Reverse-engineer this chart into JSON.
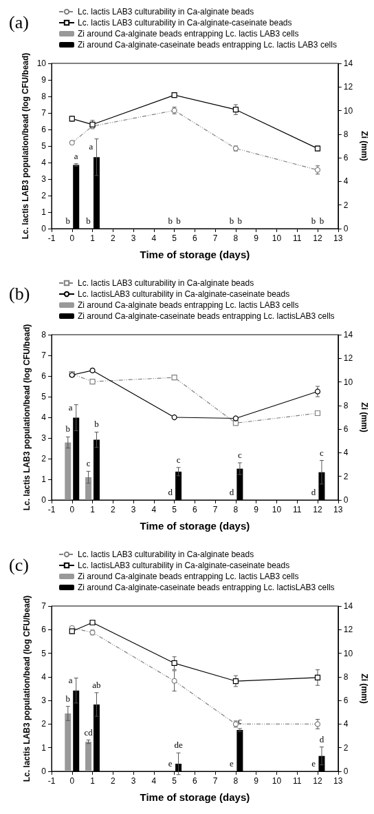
{
  "chart_data": [
    {
      "type": "line",
      "title": "(a)",
      "xlabel": "Time of storage (days)",
      "ylabel": "Lc. lactis LAB3 population/bead (log CFU/bead)",
      "y2label": "Zi (mm)",
      "legend": "top",
      "xlim": [
        -1,
        13
      ],
      "xticks": [
        -1,
        0,
        1,
        2,
        3,
        4,
        5,
        6,
        7,
        8,
        9,
        10,
        11,
        12,
        13
      ],
      "ylim": [
        0,
        10
      ],
      "yticks": [
        0,
        1,
        2,
        3,
        4,
        5,
        6,
        7,
        8,
        9,
        10
      ],
      "y2lim": [
        0,
        14
      ],
      "y2ticks": [
        0,
        2,
        4,
        6,
        8,
        10,
        12,
        14
      ],
      "series": [
        {
          "name": "Lc. lactis LAB3 culturability in Ca-alginate beads",
          "color": "#808080",
          "marker": "circle",
          "line_style": "dashed",
          "x": [
            0,
            1,
            5,
            8,
            12
          ],
          "values": [
            5.2,
            6.2,
            7.15,
            4.85,
            3.55
          ],
          "errors": [
            0.1,
            0.1,
            0.2,
            0.15,
            0.25
          ]
        },
        {
          "name": "Lc. lactis LAB3 culturability in Ca-alginate-caseinate beads",
          "color": "#000000",
          "marker": "square",
          "line_style": "solid",
          "x": [
            0,
            1,
            5,
            8,
            12
          ],
          "values": [
            6.65,
            6.3,
            8.08,
            7.2,
            4.85
          ],
          "errors": [
            0.15,
            0.25,
            0.05,
            0.3,
            0.15
          ]
        },
        {
          "name": "Zi around Ca-alginate beads entrapping Lc. lactis LAB3 cells",
          "type": "bar",
          "axis": "y2",
          "color": "#999999",
          "x": [
            -0.2,
            0.8,
            4.8,
            7.8,
            11.8
          ],
          "values": [
            0,
            0,
            0,
            0,
            0
          ],
          "value_labels": [
            "b",
            "b",
            "b",
            "b",
            "b"
          ]
        },
        {
          "name": "Zi around Ca-alginate-caseinate beads entrapping Lc. lactis LAB3 cells",
          "type": "bar",
          "axis": "y2",
          "color": "#000000",
          "x": [
            0.2,
            1.2,
            5.2,
            8.2,
            12.2
          ],
          "values": [
            5.4,
            6.05,
            0,
            0,
            0
          ],
          "errors": [
            0.1,
            1.55,
            null,
            null,
            null
          ],
          "value_labels": [
            "a",
            "a",
            "b",
            "b",
            "b"
          ]
        }
      ]
    },
    {
      "type": "line",
      "title": "(b)",
      "xlabel": "Time of storage (days)",
      "ylabel": "Lc. lactis LAB3 population/bead (log CFU/bead)",
      "y2label": "Zi (mm)",
      "legend": "top",
      "xlim": [
        -1,
        13
      ],
      "xticks": [
        -1,
        0,
        1,
        2,
        3,
        4,
        5,
        6,
        7,
        8,
        9,
        10,
        11,
        12,
        13
      ],
      "ylim": [
        0,
        8
      ],
      "yticks": [
        0,
        1,
        2,
        3,
        4,
        5,
        6,
        7,
        8
      ],
      "y2lim": [
        0,
        14
      ],
      "y2ticks": [
        0,
        2,
        4,
        6,
        8,
        10,
        12,
        14
      ],
      "series": [
        {
          "name": "Lc. lactis LAB3 culturability in Ca-alginate beads",
          "color": "#808080",
          "marker": "square",
          "line_style": "dashed",
          "x": [
            0,
            1,
            5,
            8,
            12
          ],
          "values": [
            6.1,
            5.73,
            5.93,
            3.72,
            4.2
          ],
          "errors": [
            0.1,
            0.03,
            0.02,
            0.05,
            0.07
          ]
        },
        {
          "name": "Lc. lactisLAB3 culturability in Ca-alginate-caseinate beads",
          "color": "#000000",
          "marker": "circle",
          "line_style": "solid",
          "x": [
            0,
            1,
            5,
            8,
            12
          ],
          "values": [
            6.05,
            6.27,
            4.0,
            3.95,
            5.25
          ],
          "errors": [
            0.1,
            0.02,
            0.02,
            0.02,
            0.25
          ]
        },
        {
          "name": "Zi around Ca-alginate beads entrapping Lc. lactis LAB3 cells",
          "type": "bar",
          "axis": "y2",
          "color": "#999999",
          "x": [
            -0.2,
            0.8,
            4.8,
            7.8,
            11.8
          ],
          "values": [
            4.87,
            1.93,
            0,
            0,
            0
          ],
          "errors": [
            0.47,
            0.5,
            null,
            null,
            null
          ],
          "value_labels": [
            "b",
            "c",
            "d",
            "d",
            "d"
          ]
        },
        {
          "name": "Zi around Ca-alginate-caseinate beads entrapping Lc. lactisLAB3 cells",
          "type": "bar",
          "axis": "y2",
          "color": "#000000",
          "x": [
            0.2,
            1.2,
            5.2,
            8.2,
            12.2
          ],
          "values": [
            6.97,
            5.1,
            2.4,
            2.65,
            2.35
          ],
          "errors": [
            1.1,
            0.65,
            0.35,
            0.5,
            1.0
          ],
          "value_labels": [
            "a",
            "b",
            "c",
            "c",
            "c"
          ]
        }
      ]
    },
    {
      "type": "line",
      "title": "(c)",
      "xlabel": "Time of storage (days)",
      "ylabel": "Lc. lactis LAB3 population/bead (log CFU/bead)",
      "y2label": "Zi (mm)",
      "legend": "top",
      "xlim": [
        -1,
        13
      ],
      "xticks": [
        -1,
        0,
        1,
        2,
        3,
        4,
        5,
        6,
        7,
        8,
        9,
        10,
        11,
        12,
        13
      ],
      "ylim": [
        0,
        7
      ],
      "yticks": [
        0,
        1,
        2,
        3,
        4,
        5,
        6,
        7
      ],
      "y2lim": [
        0,
        14
      ],
      "y2ticks": [
        0,
        2,
        4,
        6,
        8,
        10,
        12,
        14
      ],
      "series": [
        {
          "name": "Lc. lactis LAB3 culturability in Ca-alginate beads",
          "color": "#808080",
          "marker": "circle",
          "line_style": "dashed",
          "x": [
            0,
            1,
            5,
            8,
            12
          ],
          "values": [
            6.07,
            5.88,
            3.83,
            2.0,
            2.0
          ],
          "errors": [
            0.05,
            0.1,
            0.43,
            0.13,
            0.2
          ]
        },
        {
          "name": "Lc. lactisLAB3 culturability in Ca-alginate-caseinate beads",
          "color": "#000000",
          "marker": "square",
          "line_style": "solid",
          "x": [
            0,
            1,
            5,
            8,
            12
          ],
          "values": [
            5.93,
            6.3,
            4.58,
            3.82,
            3.97
          ],
          "errors": [
            0.1,
            0.07,
            0.27,
            0.23,
            0.33
          ]
        },
        {
          "name": "Zi around Ca-alginate beads entrapping Lc. lactis LAB3 cells",
          "type": "bar",
          "axis": "y2",
          "color": "#999999",
          "x": [
            -0.2,
            0.8,
            4.8,
            7.8,
            11.8
          ],
          "values": [
            4.9,
            2.5,
            0,
            0,
            0
          ],
          "errors": [
            0.6,
            0.15,
            null,
            null,
            null
          ],
          "value_labels": [
            "b",
            "cd",
            "e",
            "e",
            "e"
          ]
        },
        {
          "name": "Zi around Ca-alginate-caseinate beads entrapping Lc. lactisLAB3 cells",
          "type": "bar",
          "axis": "y2",
          "color": "#000000",
          "x": [
            0.2,
            1.2,
            5.2,
            8.2,
            12.2
          ],
          "values": [
            6.84,
            5.66,
            0.64,
            3.5,
            1.3
          ],
          "errors": [
            1.06,
            1.0,
            0.92,
            0.12,
            0.76
          ],
          "value_labels": [
            "a",
            "ab",
            "de",
            "c",
            "d"
          ]
        }
      ]
    }
  ]
}
